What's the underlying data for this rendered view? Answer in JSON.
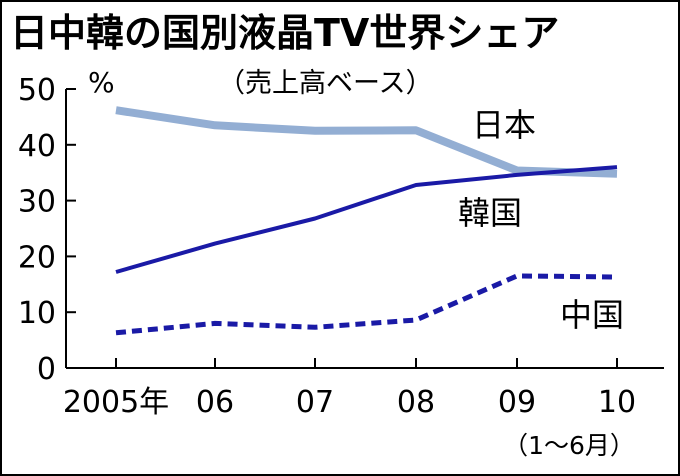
{
  "chart_data": {
    "type": "line",
    "title": "日中韓の国別液晶TV世界シェア",
    "subtitle": "（売上高ベース）",
    "ylabel": "%",
    "ylim": [
      0,
      50
    ],
    "yticks": [
      0,
      10,
      20,
      30,
      40,
      50
    ],
    "categories": [
      "2005年",
      "06",
      "07",
      "08",
      "09",
      "10"
    ],
    "x_note": "（1〜6月）",
    "series": [
      {
        "name": "日本",
        "color": "#93aed3",
        "style": "solid-thick",
        "values": [
          46.2,
          43.5,
          42.5,
          42.6,
          35.4,
          34.8
        ]
      },
      {
        "name": "韓国",
        "color": "#1a1aa6",
        "style": "solid",
        "values": [
          17.2,
          22.3,
          26.8,
          32.8,
          34.6,
          36.0
        ]
      },
      {
        "name": "中国",
        "color": "#1a1aa6",
        "style": "dashed",
        "values": [
          6.3,
          8.0,
          7.3,
          8.6,
          16.5,
          16.3
        ]
      }
    ]
  }
}
